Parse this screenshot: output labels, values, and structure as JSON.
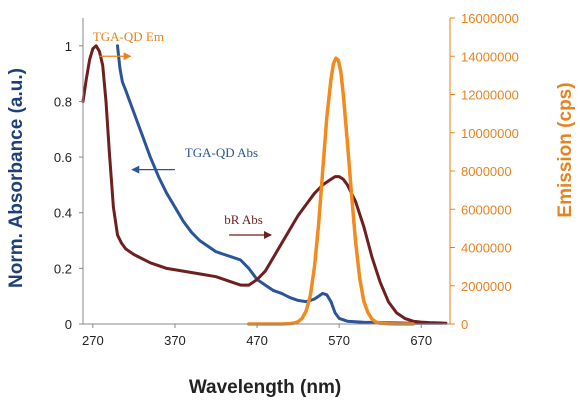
{
  "chart_data": {
    "type": "line",
    "xlabel": "Wavelength (nm)",
    "ylabel_left": "Norm. Absorbance (a.u.)",
    "ylabel_right": "Emission (cps)",
    "xlim": [
      258,
      705
    ],
    "ylim_left": [
      0,
      1.1
    ],
    "ylim_right": [
      0,
      16000000
    ],
    "x_ticks": [
      "270",
      "370",
      "470",
      "570",
      "670"
    ],
    "x_tick_values": [
      270,
      370,
      470,
      570,
      670
    ],
    "y_left_ticks": [
      "0",
      "0.2",
      "0.4",
      "0.6",
      "0.8",
      "1"
    ],
    "y_left_tick_values": [
      0,
      0.2,
      0.4,
      0.6,
      0.8,
      1
    ],
    "y_right_ticks": [
      "0",
      "2000000",
      "4000000",
      "6000000",
      "8000000",
      "10000000",
      "12000000",
      "14000000",
      "16000000"
    ],
    "y_right_tick_values": [
      0,
      2000000,
      4000000,
      6000000,
      8000000,
      10000000,
      12000000,
      14000000,
      16000000
    ],
    "grid": false,
    "legend": "none",
    "colors": {
      "left_axis": "#1f3f7a",
      "right_axis": "#e8821e",
      "tga_qd_abs": "#2a5597",
      "br_abs": "#6e1f1f",
      "tga_qd_em": "#f28a1e"
    },
    "annotations": [
      {
        "text": "TGA-QD Em",
        "series": "TGA-QD Em",
        "color": "#e8821e",
        "text_x": 270,
        "text_y": 14800000,
        "arrow_from": [
          278,
          14000000
        ],
        "arrow_to": [
          316,
          14000000
        ],
        "axis": "right"
      },
      {
        "text": "TGA-QD Abs",
        "series": "TGA-QD Abs",
        "color": "#2a5597",
        "text_x": 382,
        "text_y": 0.6,
        "arrow_from": [
          370,
          0.555
        ],
        "arrow_to": [
          318,
          0.555
        ],
        "axis": "left"
      },
      {
        "text": "bR Abs",
        "series": "bR Abs",
        "color": "#6e1f1f",
        "text_x": 430,
        "text_y": 0.36,
        "arrow_from": [
          436,
          0.32
        ],
        "arrow_to": [
          487,
          0.32
        ],
        "axis": "left"
      }
    ],
    "series": [
      {
        "name": "TGA-QD Abs",
        "axis": "left",
        "color": "#2a5597",
        "x": [
          300,
          303,
          306,
          310,
          315,
          320,
          330,
          340,
          350,
          360,
          370,
          380,
          390,
          400,
          410,
          420,
          430,
          440,
          450,
          460,
          470,
          480,
          490,
          500,
          510,
          520,
          530,
          540,
          545,
          550,
          555,
          560,
          565,
          570,
          580,
          590,
          600,
          620,
          640,
          660,
          680,
          695
        ],
        "y": [
          1.0,
          0.92,
          0.87,
          0.84,
          0.8,
          0.76,
          0.68,
          0.6,
          0.53,
          0.47,
          0.42,
          0.37,
          0.33,
          0.3,
          0.28,
          0.26,
          0.25,
          0.24,
          0.23,
          0.2,
          0.16,
          0.14,
          0.12,
          0.11,
          0.095,
          0.085,
          0.08,
          0.09,
          0.1,
          0.11,
          0.105,
          0.08,
          0.04,
          0.02,
          0.01,
          0.008,
          0.006,
          0.005,
          0.004,
          0.003,
          0.003,
          0.003
        ]
      },
      {
        "name": "bR Abs",
        "axis": "left",
        "color": "#6e1f1f",
        "x": [
          258,
          262,
          266,
          270,
          274,
          278,
          282,
          286,
          290,
          295,
          300,
          305,
          310,
          320,
          340,
          360,
          380,
          400,
          420,
          440,
          450,
          460,
          470,
          480,
          490,
          500,
          510,
          520,
          530,
          540,
          550,
          560,
          565,
          570,
          575,
          580,
          590,
          600,
          610,
          620,
          630,
          640,
          650,
          660,
          670,
          680,
          690,
          700
        ],
        "y": [
          0.8,
          0.88,
          0.95,
          0.99,
          1.0,
          0.98,
          0.93,
          0.8,
          0.62,
          0.42,
          0.32,
          0.29,
          0.27,
          0.25,
          0.22,
          0.2,
          0.19,
          0.18,
          0.17,
          0.15,
          0.14,
          0.14,
          0.16,
          0.19,
          0.24,
          0.29,
          0.34,
          0.39,
          0.43,
          0.47,
          0.5,
          0.52,
          0.53,
          0.53,
          0.52,
          0.5,
          0.44,
          0.35,
          0.24,
          0.15,
          0.08,
          0.04,
          0.02,
          0.01,
          0.007,
          0.005,
          0.004,
          0.003
        ]
      },
      {
        "name": "TGA-QD Em",
        "axis": "right",
        "color": "#f28a1e",
        "x": [
          460,
          470,
          480,
          490,
          500,
          510,
          515,
          520,
          525,
          530,
          535,
          540,
          545,
          550,
          555,
          560,
          563,
          566,
          569,
          572,
          575,
          580,
          585,
          590,
          595,
          600,
          605,
          610,
          615,
          620,
          630,
          640,
          650,
          660
        ],
        "y": [
          0,
          0,
          0,
          0,
          0,
          20000,
          50000,
          120000,
          300000,
          700000,
          1500000,
          3000000,
          5200000,
          8000000,
          10800000,
          12800000,
          13600000,
          13900000,
          13800000,
          13200000,
          12000000,
          9500000,
          6800000,
          4300000,
          2400000,
          1200000,
          600000,
          250000,
          100000,
          40000,
          10000,
          0,
          0,
          0
        ]
      }
    ]
  }
}
